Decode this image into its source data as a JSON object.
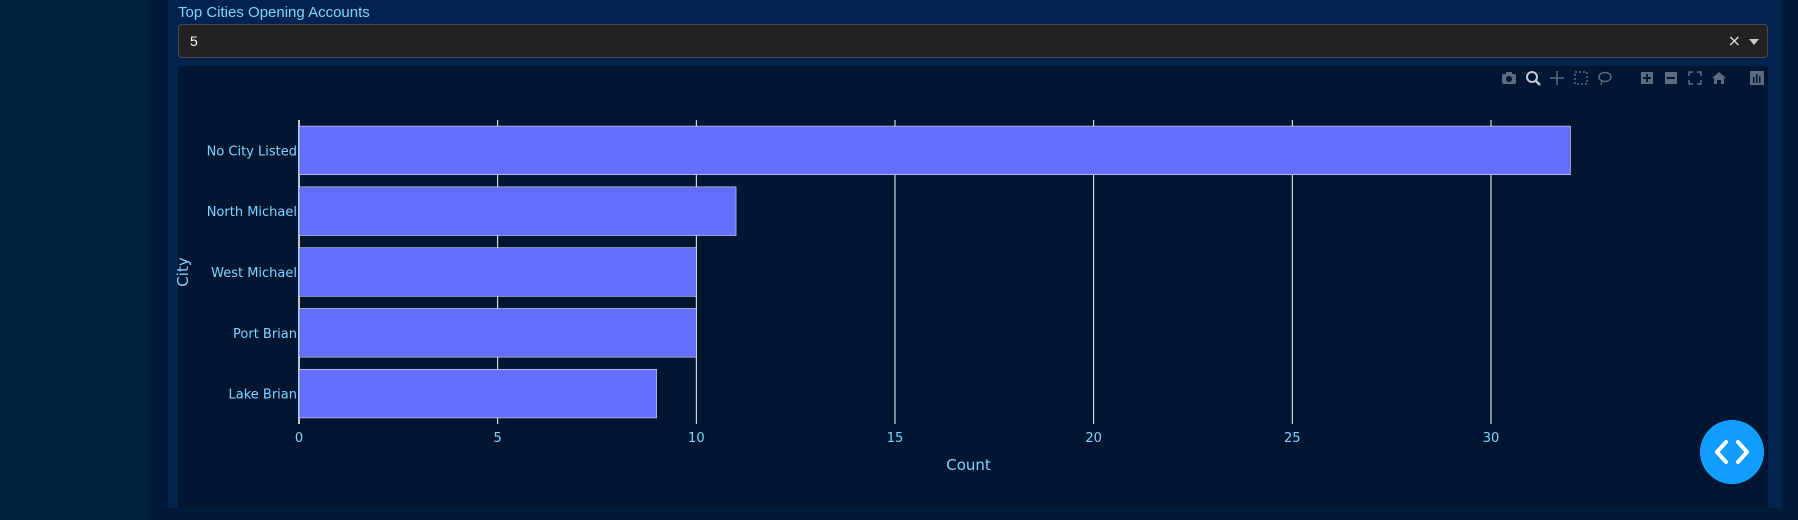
{
  "section": {
    "label": "Top Cities Opening Accounts"
  },
  "dropdown": {
    "value": "5",
    "clear_symbol": "×"
  },
  "modebar": {
    "icons": [
      "camera-icon",
      "zoom-icon",
      "pan-icon",
      "box-select-icon",
      "lasso-select-icon",
      "zoom-in-icon",
      "zoom-out-icon",
      "autoscale-icon",
      "reset-axes-icon",
      "plotly-logo-icon"
    ]
  },
  "colors": {
    "bar_fill": "#636efa",
    "axis_text": "#7fd3ff",
    "grid": "#ffffff",
    "plot_bg": "#011631",
    "fab": "#119dff"
  },
  "chart_data": {
    "type": "bar",
    "orientation": "horizontal",
    "categories": [
      "No City Listed",
      "North Michael",
      "West Michael",
      "Port Brian",
      "Lake Brian"
    ],
    "values": [
      32,
      11,
      10,
      10,
      9
    ],
    "xlabel": "Count",
    "ylabel": "City",
    "xlim": [
      0,
      33.7
    ],
    "xticks": [
      0,
      5,
      10,
      15,
      20,
      25,
      30
    ],
    "grid": true
  }
}
